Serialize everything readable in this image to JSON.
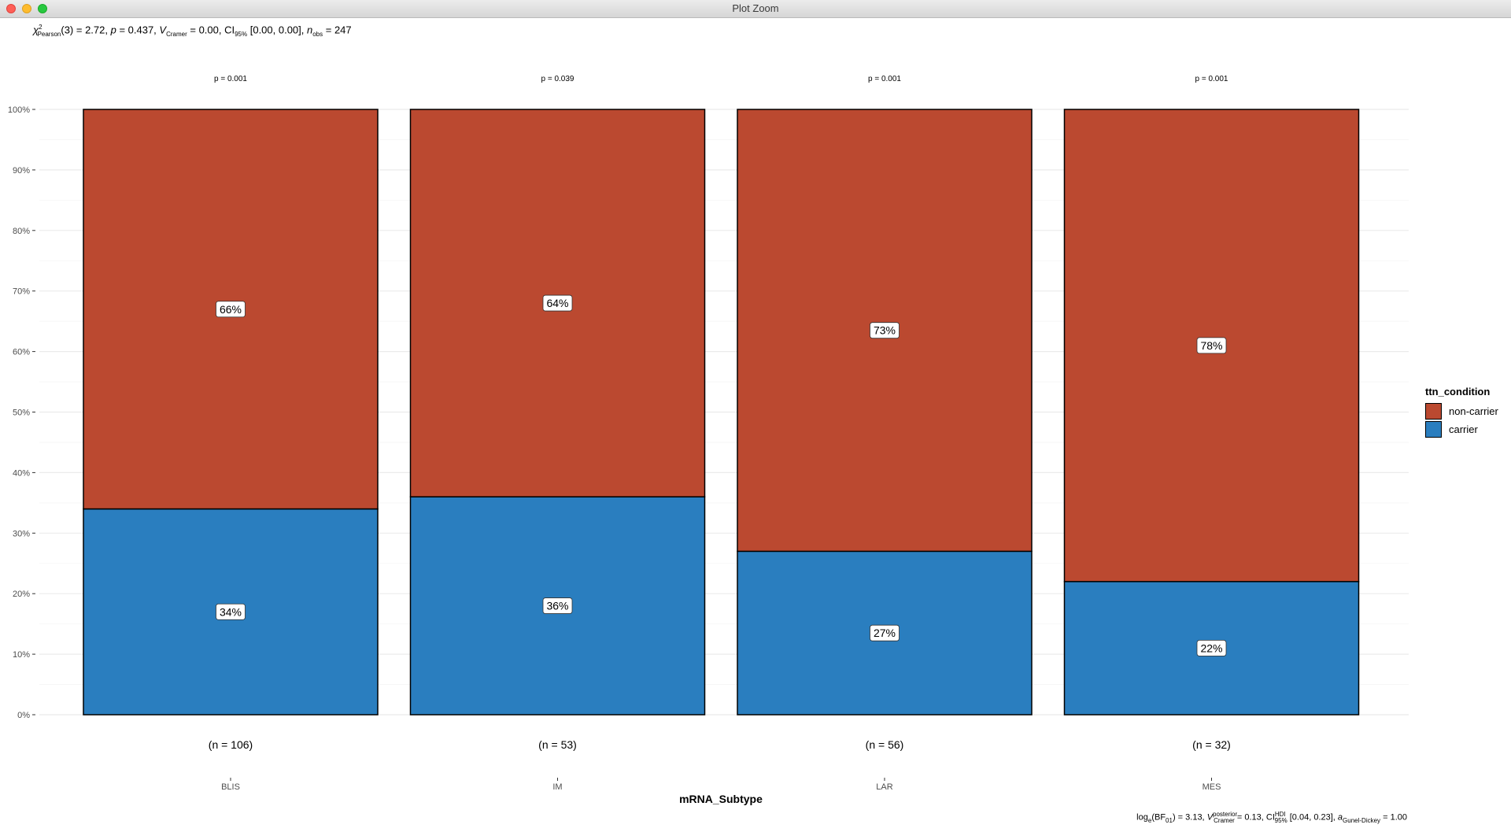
{
  "window": {
    "title": "Plot Zoom"
  },
  "subtitle": {
    "chi": "χ",
    "chi_sup": "2",
    "chi_sub": "Pearson",
    "stat": "(3) = 2.72, ",
    "p": "p",
    "p_val": " = 0.437, ",
    "v": "V",
    "v_sub": "Cramer",
    "v_val": " = 0.00, CI",
    "ci_sub": "95%",
    "ci_val": " [0.00, 0.00], ",
    "n": "n",
    "n_sub": "obs",
    "n_val": " = 247"
  },
  "caption": {
    "part1": "log",
    "part1_sub": "e",
    "part2": "(BF",
    "part2_sub": "01",
    "part3": ") = 3.13, ",
    "v": "V",
    "v_sup": "posterior",
    "v_sub": "Cramer",
    "part4": " = 0.13, CI",
    "ci_sup": "HDI",
    "ci_sub": "95%",
    "part5": " [0.04, 0.23], ",
    "a": "a",
    "a_sub": "Gunel-Dickey",
    "part6": " = 1.00"
  },
  "legend": {
    "title": "ttn_condition",
    "items": [
      {
        "label": "non-carrier",
        "color": "#bb4930"
      },
      {
        "label": "carrier",
        "color": "#2a7ebf"
      }
    ]
  },
  "chart_data": {
    "type": "bar",
    "stacked": true,
    "percent": true,
    "xlabel": "mRNA_Subtype",
    "ylabel": "",
    "ylim": [
      0,
      100
    ],
    "y_ticks": [
      "0%",
      "10%",
      "20%",
      "30%",
      "40%",
      "50%",
      "60%",
      "70%",
      "80%",
      "90%",
      "100%"
    ],
    "categories": [
      "BLIS",
      "IM",
      "LAR",
      "MES"
    ],
    "counts": [
      "(n = 106)",
      "(n = 53)",
      "(n = 56)",
      "(n = 32)"
    ],
    "pvalues": [
      "p = 0.001",
      "p = 0.039",
      "p = 0.001",
      "p = 0.001"
    ],
    "series": [
      {
        "name": "carrier",
        "color": "#2a7ebf",
        "values": [
          34,
          36,
          27,
          22
        ],
        "labels": [
          "34%",
          "36%",
          "27%",
          "22%"
        ]
      },
      {
        "name": "non-carrier",
        "color": "#bb4930",
        "values": [
          66,
          64,
          73,
          78
        ],
        "labels": [
          "66%",
          "64%",
          "73%",
          "78%"
        ]
      }
    ],
    "grid": true,
    "legend_position": "right"
  }
}
